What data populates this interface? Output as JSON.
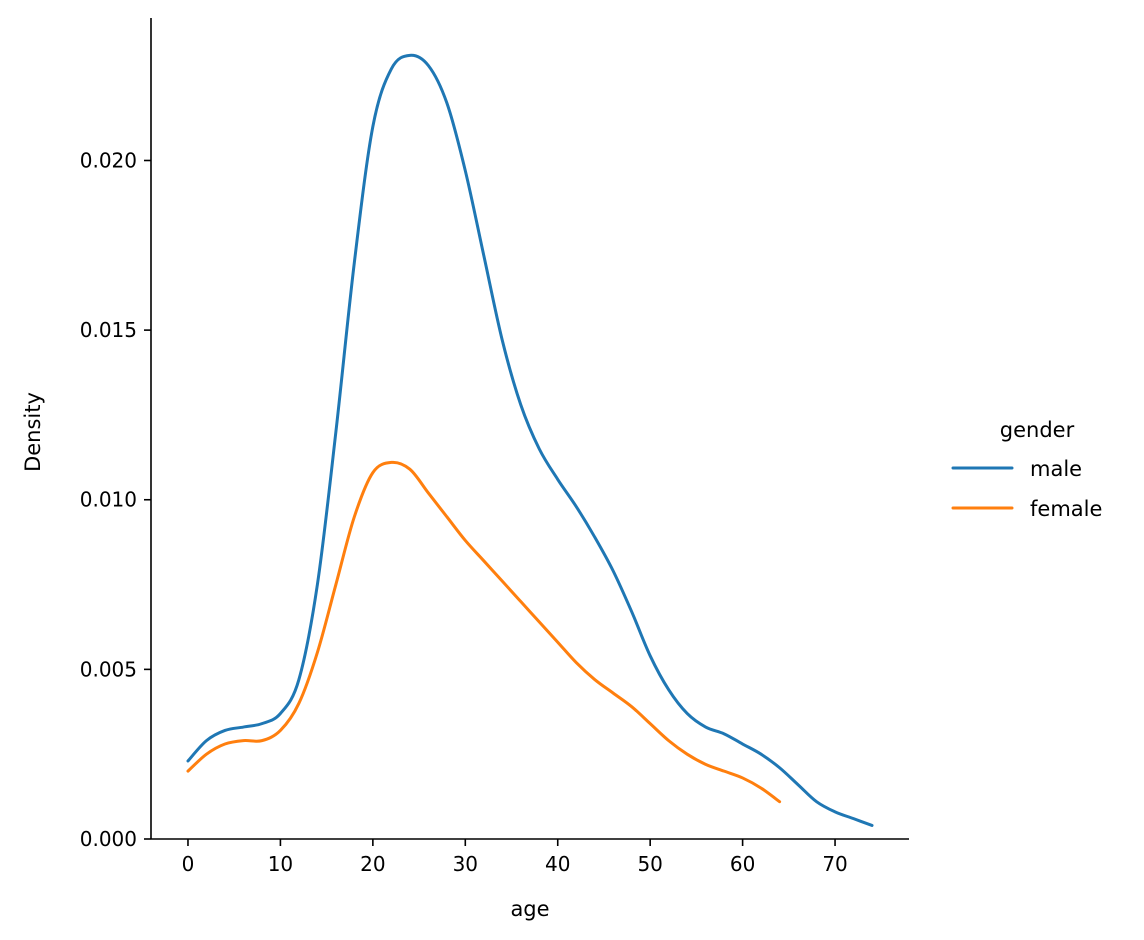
{
  "chart_data": {
    "type": "line",
    "title": "",
    "xlabel": "age",
    "ylabel": "Density",
    "xlim": [
      -4,
      78
    ],
    "ylim": [
      0,
      0.0242
    ],
    "x_ticks": [
      0,
      10,
      20,
      30,
      40,
      50,
      60,
      70
    ],
    "x_tick_labels": [
      "0",
      "10",
      "20",
      "30",
      "40",
      "50",
      "60",
      "70"
    ],
    "y_ticks": [
      0,
      0.005,
      0.01,
      0.015,
      0.02
    ],
    "y_tick_labels": [
      "0.000",
      "0.005",
      "0.010",
      "0.015",
      "0.020"
    ],
    "grid": false,
    "legend": {
      "title": "gender",
      "placement": "outside-right"
    },
    "series": [
      {
        "name": "male",
        "color": "#1f77b4",
        "x": [
          0,
          2,
          4,
          6,
          8,
          10,
          12,
          14,
          16,
          18,
          20,
          22,
          24,
          26,
          28,
          30,
          32,
          34,
          36,
          38,
          40,
          42,
          44,
          46,
          48,
          50,
          52,
          54,
          56,
          58,
          60,
          62,
          64,
          66,
          68,
          70,
          72,
          74
        ],
        "y": [
          0.0023,
          0.0029,
          0.0032,
          0.0033,
          0.0034,
          0.0037,
          0.0047,
          0.0075,
          0.012,
          0.017,
          0.021,
          0.0227,
          0.0231,
          0.0228,
          0.0217,
          0.0197,
          0.0172,
          0.0147,
          0.0128,
          0.0115,
          0.0106,
          0.0098,
          0.0089,
          0.0079,
          0.0067,
          0.0054,
          0.0044,
          0.0037,
          0.0033,
          0.0031,
          0.0028,
          0.0025,
          0.0021,
          0.0016,
          0.0011,
          0.0008,
          0.0006,
          0.0004
        ]
      },
      {
        "name": "female",
        "color": "#ff7f0e",
        "x": [
          0,
          2,
          4,
          6,
          8,
          10,
          12,
          14,
          16,
          18,
          20,
          22,
          24,
          26,
          28,
          30,
          32,
          34,
          36,
          38,
          40,
          42,
          44,
          46,
          48,
          50,
          52,
          54,
          56,
          58,
          60,
          62,
          64
        ],
        "y": [
          0.002,
          0.0025,
          0.0028,
          0.0029,
          0.0029,
          0.0032,
          0.004,
          0.0055,
          0.0075,
          0.0095,
          0.0108,
          0.0111,
          0.0109,
          0.0102,
          0.0095,
          0.0088,
          0.0082,
          0.0076,
          0.007,
          0.0064,
          0.0058,
          0.0052,
          0.0047,
          0.0043,
          0.0039,
          0.0034,
          0.0029,
          0.0025,
          0.0022,
          0.002,
          0.0018,
          0.0015,
          0.0011
        ]
      }
    ]
  }
}
